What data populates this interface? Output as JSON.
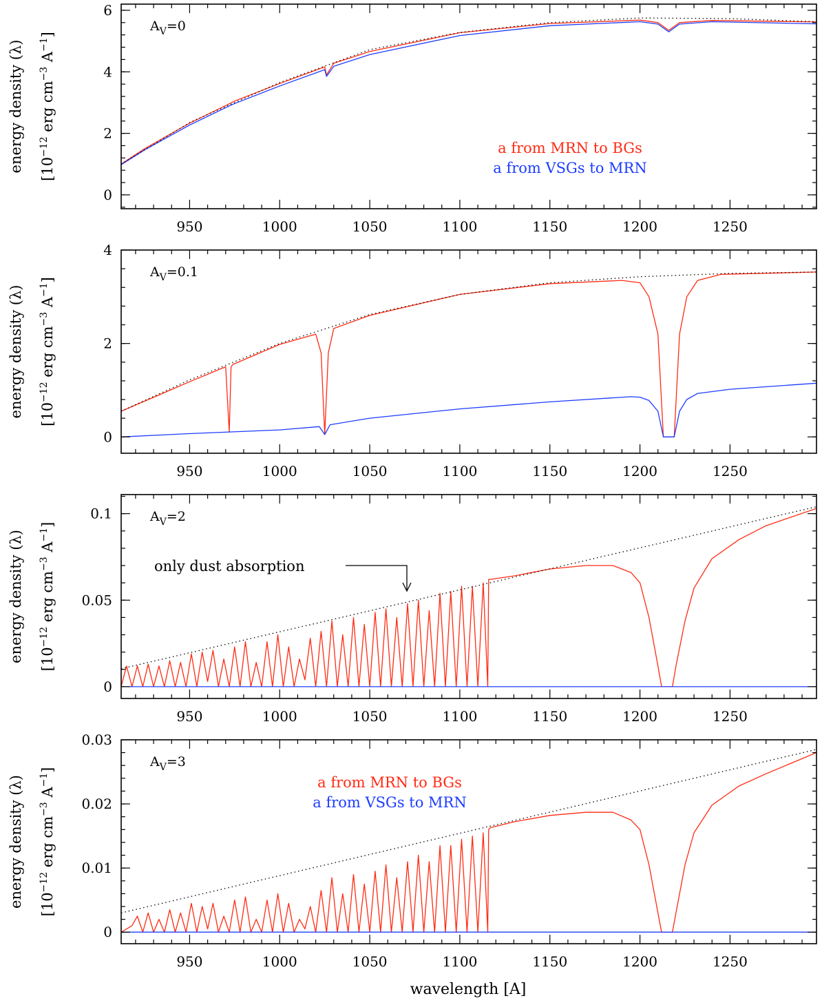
{
  "colors": {
    "red": "#ff2a12",
    "blue": "#1c3cff",
    "black": "#000000"
  },
  "x_axis_label": "wavelength [A]",
  "y_axis_label_line1": "energy density (λ)",
  "y_axis_label_line2_parts": [
    "[10",
    "−12",
    " erg cm",
    "−3",
    " A",
    "−1",
    "]"
  ],
  "legend": {
    "red": "a from MRN to BGs",
    "blue": "a from VSGs to MRN"
  },
  "annotation": "only dust absorption",
  "chart_data": [
    {
      "type": "line",
      "av_label_parts": [
        "A",
        "V",
        "=0"
      ],
      "xlim": [
        912,
        1298
      ],
      "ylim": [
        -0.45,
        6.2
      ],
      "x_ticks": [
        950,
        1000,
        1050,
        1100,
        1150,
        1200,
        1250
      ],
      "y_ticks": [
        0,
        2,
        4,
        6
      ],
      "y_tick_labels": [
        "0",
        "2",
        "4",
        "6"
      ],
      "series": [
        {
          "name": "a from MRN to BGs",
          "color": "red",
          "x": [
            912,
            925,
            950,
            972,
            975,
            1000,
            1025,
            1026,
            1030,
            1050,
            1100,
            1150,
            1200,
            1210,
            1216,
            1222,
            1240,
            1298
          ],
          "y": [
            1.0,
            1.5,
            2.33,
            2.96,
            3.05,
            3.62,
            4.16,
            3.9,
            4.28,
            4.66,
            5.27,
            5.57,
            5.68,
            5.6,
            5.35,
            5.6,
            5.67,
            5.62
          ]
        },
        {
          "name": "a from VSGs to MRN",
          "color": "blue",
          "x": [
            912,
            925,
            950,
            972,
            975,
            1000,
            1025,
            1026,
            1030,
            1050,
            1100,
            1150,
            1200,
            1210,
            1216,
            1222,
            1240,
            1298
          ],
          "y": [
            0.98,
            1.46,
            2.27,
            2.89,
            2.97,
            3.54,
            4.07,
            3.85,
            4.18,
            4.56,
            5.18,
            5.5,
            5.63,
            5.55,
            5.3,
            5.55,
            5.63,
            5.56
          ]
        },
        {
          "name": "dotted",
          "color": "black",
          "x": [
            912,
            950,
            1000,
            1050,
            1100,
            1150,
            1200,
            1250,
            1298
          ],
          "y": [
            1.0,
            2.35,
            3.65,
            4.72,
            5.28,
            5.6,
            5.75,
            5.73,
            5.63
          ]
        }
      ]
    },
    {
      "type": "line",
      "av_label_parts": [
        "A",
        "V",
        "=0.1"
      ],
      "xlim": [
        912,
        1298
      ],
      "ylim": [
        -0.35,
        4.0
      ],
      "x_ticks": [
        950,
        1000,
        1050,
        1100,
        1150,
        1200,
        1250
      ],
      "y_ticks": [
        0,
        2,
        4
      ],
      "y_tick_labels": [
        "0",
        "2",
        "4"
      ],
      "series": [
        {
          "name": "a from MRN to BGs",
          "color": "red",
          "x": [
            912,
            950,
            970,
            972,
            973,
            974,
            1000,
            1020,
            1023,
            1025,
            1027,
            1030,
            1050,
            1100,
            1150,
            1190,
            1200,
            1205,
            1210,
            1213,
            1219,
            1222,
            1226,
            1232,
            1245,
            1298
          ],
          "y": [
            0.55,
            1.18,
            1.5,
            0.1,
            1.5,
            1.55,
            1.98,
            2.2,
            1.8,
            0.05,
            1.8,
            2.32,
            2.6,
            3.05,
            3.28,
            3.35,
            3.3,
            3.0,
            2.2,
            0.0,
            0.0,
            2.2,
            3.0,
            3.35,
            3.48,
            3.53
          ]
        },
        {
          "name": "a from VSGs to MRN",
          "color": "blue",
          "x": [
            912,
            950,
            1000,
            1022,
            1025,
            1028,
            1050,
            1100,
            1150,
            1195,
            1200,
            1205,
            1210,
            1213,
            1219,
            1222,
            1226,
            1232,
            1250,
            1298
          ],
          "y": [
            0.0,
            0.07,
            0.15,
            0.22,
            0.05,
            0.26,
            0.4,
            0.6,
            0.75,
            0.86,
            0.85,
            0.78,
            0.55,
            0.0,
            0.0,
            0.55,
            0.8,
            0.93,
            1.02,
            1.15
          ]
        },
        {
          "name": "dotted",
          "color": "black",
          "x": [
            912,
            950,
            1000,
            1050,
            1100,
            1150,
            1200,
            1250,
            1298
          ],
          "y": [
            0.55,
            1.22,
            2.0,
            2.62,
            3.05,
            3.3,
            3.43,
            3.5,
            3.53
          ]
        }
      ]
    },
    {
      "type": "line",
      "av_label_parts": [
        "A",
        "V",
        "=2"
      ],
      "xlim": [
        912,
        1298
      ],
      "ylim": [
        -0.0068,
        0.111
      ],
      "x_ticks": [
        950,
        1000,
        1050,
        1100,
        1150,
        1200,
        1250
      ],
      "y_ticks": [
        0,
        0.05,
        0.1
      ],
      "y_tick_labels": [
        "0",
        "0.05",
        "0.1"
      ],
      "series": [
        {
          "name": "a from MRN to BGs",
          "color": "red",
          "x": [
            912,
            915,
            918,
            921,
            924,
            927,
            930,
            933,
            936,
            939,
            942,
            945,
            948,
            951,
            954,
            957,
            960,
            963,
            966,
            969,
            972,
            975,
            978,
            981,
            984,
            987,
            990,
            993,
            996,
            999,
            1002,
            1005,
            1008,
            1011,
            1014,
            1017,
            1020,
            1023,
            1026,
            1029,
            1032,
            1035,
            1038,
            1041,
            1044,
            1047,
            1050,
            1053,
            1056,
            1059,
            1062,
            1065,
            1068,
            1071,
            1074,
            1077,
            1080,
            1083,
            1086,
            1089,
            1092,
            1095,
            1098,
            1101,
            1104,
            1107,
            1110,
            1113,
            1115.5,
            1116,
            1117,
            1130,
            1150,
            1170,
            1185,
            1195,
            1200,
            1205,
            1210,
            1212,
            1218,
            1220,
            1225,
            1230,
            1240,
            1255,
            1270,
            1298
          ],
          "y": [
            0,
            0.012,
            0,
            0.012,
            0,
            0.013,
            0,
            0.012,
            0,
            0.015,
            0,
            0.014,
            0,
            0.019,
            0,
            0.02,
            0.003,
            0.021,
            0,
            0.016,
            0,
            0.023,
            0,
            0.026,
            0,
            0.014,
            0,
            0.026,
            0,
            0.03,
            0,
            0.023,
            0,
            0.016,
            0.004,
            0.028,
            0,
            0.032,
            0,
            0.038,
            0,
            0.03,
            0,
            0.04,
            0,
            0.036,
            0,
            0.043,
            0,
            0.045,
            0,
            0.04,
            0,
            0.048,
            0,
            0.05,
            0,
            0.044,
            0,
            0.054,
            0,
            0.055,
            0,
            0.058,
            0,
            0.058,
            0,
            0.06,
            0,
            0.062,
            0.062,
            0.064,
            0.068,
            0.07,
            0.07,
            0.066,
            0.06,
            0.04,
            0.012,
            0.0,
            0.0,
            0.012,
            0.038,
            0.057,
            0.074,
            0.085,
            0.093,
            0.103
          ]
        },
        {
          "name": "a from VSGs to MRN",
          "color": "blue",
          "x": [
            912,
            1298
          ],
          "y": [
            0,
            0
          ]
        },
        {
          "name": "dotted",
          "color": "black",
          "x": [
            912,
            1298
          ],
          "y": [
            0.0104,
            0.104
          ]
        }
      ]
    },
    {
      "type": "line",
      "av_label_parts": [
        "A",
        "V",
        "=3"
      ],
      "xlim": [
        912,
        1298
      ],
      "ylim": [
        -0.0018,
        0.03
      ],
      "x_ticks": [
        950,
        1000,
        1050,
        1100,
        1150,
        1200,
        1250
      ],
      "y_ticks": [
        0,
        0.01,
        0.02,
        0.03
      ],
      "y_tick_labels": [
        "0",
        "0.01",
        "0.02",
        "0.03"
      ],
      "series": [
        {
          "name": "a from MRN to BGs",
          "color": "red",
          "x": [
            912,
            918,
            921,
            924,
            927,
            930,
            933,
            936,
            939,
            942,
            945,
            948,
            951,
            954,
            957,
            960,
            963,
            966,
            969,
            972,
            975,
            978,
            981,
            984,
            987,
            990,
            993,
            996,
            999,
            1002,
            1005,
            1008,
            1011,
            1014,
            1017,
            1020,
            1023,
            1026,
            1029,
            1032,
            1035,
            1038,
            1041,
            1044,
            1047,
            1050,
            1053,
            1056,
            1059,
            1062,
            1065,
            1068,
            1071,
            1074,
            1077,
            1080,
            1083,
            1086,
            1089,
            1092,
            1095,
            1098,
            1101,
            1104,
            1107,
            1110,
            1113,
            1115.5,
            1116,
            1117,
            1130,
            1150,
            1170,
            1185,
            1195,
            1200,
            1205,
            1210,
            1212,
            1218,
            1220,
            1225,
            1230,
            1240,
            1255,
            1270,
            1298
          ],
          "y": [
            0,
            0.001,
            0.0025,
            0,
            0.003,
            0,
            0.002,
            0,
            0.0035,
            0,
            0.003,
            0,
            0.0045,
            0,
            0.004,
            0.0005,
            0.0045,
            0,
            0.0025,
            0,
            0.005,
            0,
            0.0055,
            0,
            0.002,
            0,
            0.005,
            0,
            0.006,
            0,
            0.0045,
            0,
            0.002,
            0.0005,
            0.004,
            0,
            0.0065,
            0,
            0.0085,
            0,
            0.006,
            0,
            0.009,
            0,
            0.0075,
            0,
            0.0095,
            0,
            0.0105,
            0,
            0.0085,
            0,
            0.011,
            0,
            0.012,
            0,
            0.011,
            0,
            0.0135,
            0,
            0.0135,
            0,
            0.0145,
            0,
            0.015,
            0,
            0.0155,
            0,
            0.016,
            0.0163,
            0.0172,
            0.0182,
            0.0187,
            0.0187,
            0.0175,
            0.016,
            0.0105,
            0.003,
            0.0,
            0.0,
            0.003,
            0.0105,
            0.0155,
            0.0198,
            0.0228,
            0.0247,
            0.028
          ]
        },
        {
          "name": "a from VSGs to MRN",
          "color": "blue",
          "x": [
            912,
            1298
          ],
          "y": [
            0,
            0
          ]
        },
        {
          "name": "dotted",
          "color": "black",
          "x": [
            912,
            1298
          ],
          "y": [
            0.003,
            0.0285
          ]
        }
      ]
    }
  ]
}
